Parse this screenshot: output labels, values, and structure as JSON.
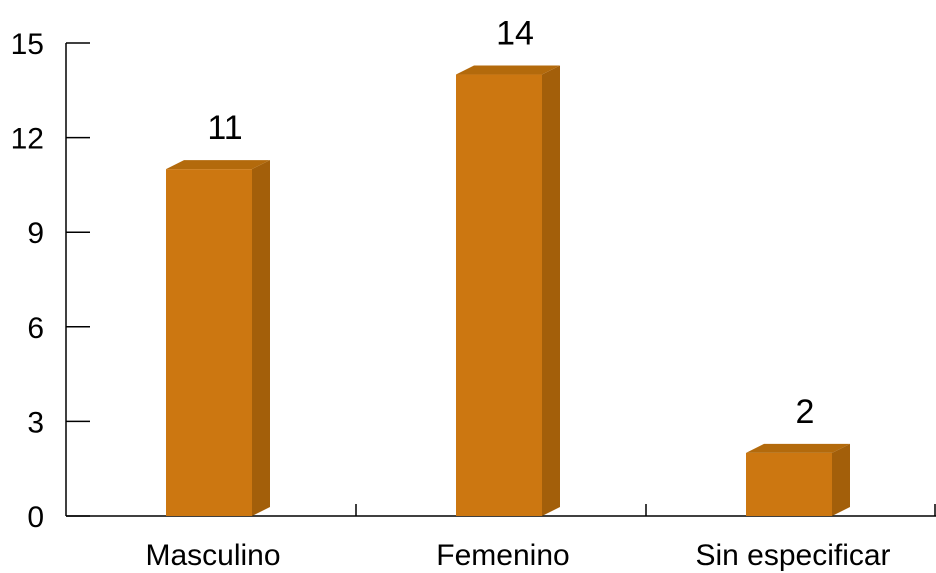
{
  "chart_data": {
    "type": "bar",
    "title": "",
    "xlabel": "",
    "ylabel": "",
    "categories": [
      "Masculino",
      "Femenino",
      "Sin especificar"
    ],
    "values": [
      11,
      14,
      2
    ],
    "data_labels": [
      "11",
      "14",
      "2"
    ],
    "ylim": [
      0,
      15
    ],
    "yticks": [
      0,
      3,
      6,
      9,
      12,
      15
    ],
    "ytick_labels": [
      "0",
      "3",
      "6",
      "9",
      "12",
      "15"
    ],
    "grid": false,
    "legend": "none",
    "style": "3d-bar",
    "colors": {
      "bar_front": "#CC7711",
      "bar_top": "#B36A0C",
      "bar_side": "#A35F0A",
      "axis": "#000000",
      "text": "#000000"
    }
  }
}
